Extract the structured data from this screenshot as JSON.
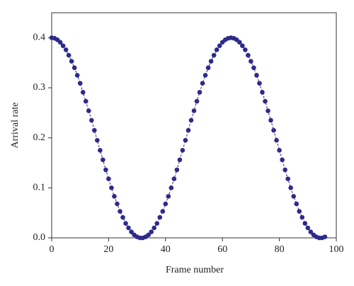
{
  "chart_data": {
    "type": "line",
    "xlabel": "Frame number",
    "ylabel": "Arrival rate",
    "color": "#2e2a8a",
    "line_style": "dashed",
    "xlim": [
      0,
      100
    ],
    "ylim": [
      0,
      0.45
    ],
    "xticks": [
      0,
      20,
      40,
      60,
      80,
      100
    ],
    "yticks": [
      {
        "value": 0,
        "label": "0.0"
      },
      0.1,
      0.2,
      0.3,
      0.4
    ],
    "x": [
      0,
      1,
      2,
      3,
      4,
      5,
      6,
      7,
      8,
      9,
      10,
      11,
      12,
      13,
      14,
      15,
      16,
      17,
      18,
      19,
      20,
      21,
      22,
      23,
      24,
      25,
      26,
      27,
      28,
      29,
      30,
      31,
      32,
      33,
      34,
      35,
      36,
      37,
      38,
      39,
      40,
      41,
      42,
      43,
      44,
      45,
      46,
      47,
      48,
      49,
      50,
      51,
      52,
      53,
      54,
      55,
      56,
      57,
      58,
      59,
      60,
      61,
      62,
      63,
      64,
      65,
      66,
      67,
      68,
      69,
      70,
      71,
      72,
      73,
      74,
      75,
      76,
      77,
      78,
      79,
      80,
      81,
      82,
      83,
      84,
      85,
      86,
      87,
      88,
      89,
      90,
      91,
      92,
      93,
      94,
      95,
      96
    ],
    "values": [
      0.4,
      0.399,
      0.396,
      0.391,
      0.384,
      0.376,
      0.365,
      0.353,
      0.34,
      0.325,
      0.309,
      0.291,
      0.273,
      0.254,
      0.235,
      0.215,
      0.195,
      0.175,
      0.156,
      0.136,
      0.118,
      0.1,
      0.083,
      0.068,
      0.053,
      0.041,
      0.029,
      0.02,
      0.012,
      0.006,
      0.002,
      0.0,
      0.0,
      0.002,
      0.006,
      0.012,
      0.02,
      0.029,
      0.041,
      0.053,
      0.068,
      0.083,
      0.1,
      0.118,
      0.136,
      0.156,
      0.175,
      0.195,
      0.215,
      0.235,
      0.254,
      0.273,
      0.291,
      0.309,
      0.325,
      0.34,
      0.353,
      0.365,
      0.376,
      0.384,
      0.391,
      0.396,
      0.399,
      0.4,
      0.399,
      0.396,
      0.391,
      0.384,
      0.376,
      0.365,
      0.353,
      0.34,
      0.325,
      0.309,
      0.291,
      0.273,
      0.254,
      0.235,
      0.215,
      0.195,
      0.175,
      0.156,
      0.136,
      0.118,
      0.1,
      0.083,
      0.068,
      0.053,
      0.041,
      0.029,
      0.02,
      0.012,
      0.006,
      0.002,
      0.0,
      0.0,
      0.002
    ]
  }
}
